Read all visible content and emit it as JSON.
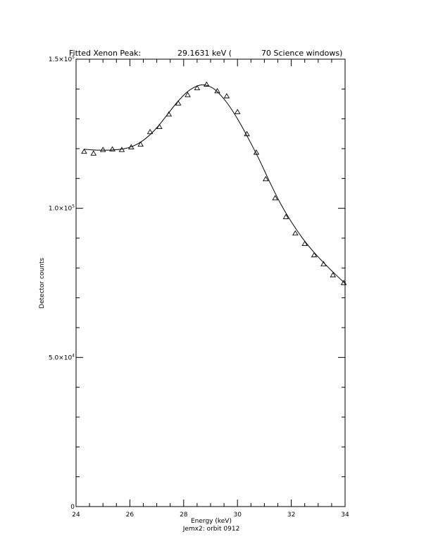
{
  "chart_data": {
    "type": "scatter",
    "title_parts": {
      "prefix": "Fitted Xenon Peak:",
      "energy": "29.1631 keV (",
      "windows": "70 Science windows)"
    },
    "xlabel": "Energy (keV)",
    "subtitle": "Jemx2: orbit 0912",
    "ylabel": "Detector counts",
    "xlim": [
      24,
      34
    ],
    "ylim": [
      0,
      150000
    ],
    "x_ticks": [
      {
        "value": 24,
        "label": "24"
      },
      {
        "value": 26,
        "label": "26"
      },
      {
        "value": 28,
        "label": "28"
      },
      {
        "value": 30,
        "label": "30"
      },
      {
        "value": 32,
        "label": "32"
      },
      {
        "value": 34,
        "label": "34"
      }
    ],
    "x_minor_step": 0.5,
    "y_ticks": [
      {
        "value": 0,
        "mantissa": "0",
        "exponent": ""
      },
      {
        "value": 50000,
        "mantissa": "5.0×10",
        "exponent": "4"
      },
      {
        "value": 100000,
        "mantissa": "1.0×10",
        "exponent": "5"
      },
      {
        "value": 150000,
        "mantissa": "1.5×10",
        "exponent": "5"
      }
    ],
    "y_minor_step": 10000,
    "series": [
      {
        "marker": "triangle",
        "x": [
          24.3,
          24.65,
          25.0,
          25.35,
          25.7,
          26.05,
          26.4,
          26.75,
          27.1,
          27.45,
          27.8,
          28.15,
          28.5,
          28.85,
          29.25,
          29.6,
          30.0,
          30.35,
          30.7,
          31.05,
          31.4,
          31.8,
          32.15,
          32.5,
          32.85,
          33.2,
          33.55,
          33.95
        ],
        "y": [
          119000,
          118400,
          119600,
          119800,
          119600,
          120500,
          121400,
          125600,
          127300,
          131500,
          135200,
          138000,
          140300,
          141500,
          139300,
          137600,
          132300,
          124900,
          118700,
          109800,
          103400,
          97100,
          91600,
          88100,
          84300,
          81300,
          77600,
          75000
        ]
      }
    ],
    "fit": {
      "x": [
        24.3,
        24.6,
        25.0,
        25.4,
        25.8,
        26.2,
        26.6,
        27.0,
        27.4,
        27.8,
        28.2,
        28.6,
        28.9,
        29.2,
        29.6,
        30.0,
        30.4,
        30.8,
        31.2,
        31.6,
        32.0,
        32.4,
        32.8,
        33.2,
        33.6,
        34.0
      ],
      "y": [
        119800,
        119600,
        119500,
        119600,
        120000,
        121200,
        123500,
        127000,
        131500,
        136000,
        139500,
        141300,
        141100,
        139500,
        135500,
        130000,
        123500,
        116500,
        108800,
        101600,
        95500,
        90200,
        85700,
        81800,
        78200,
        74800
      ]
    }
  }
}
